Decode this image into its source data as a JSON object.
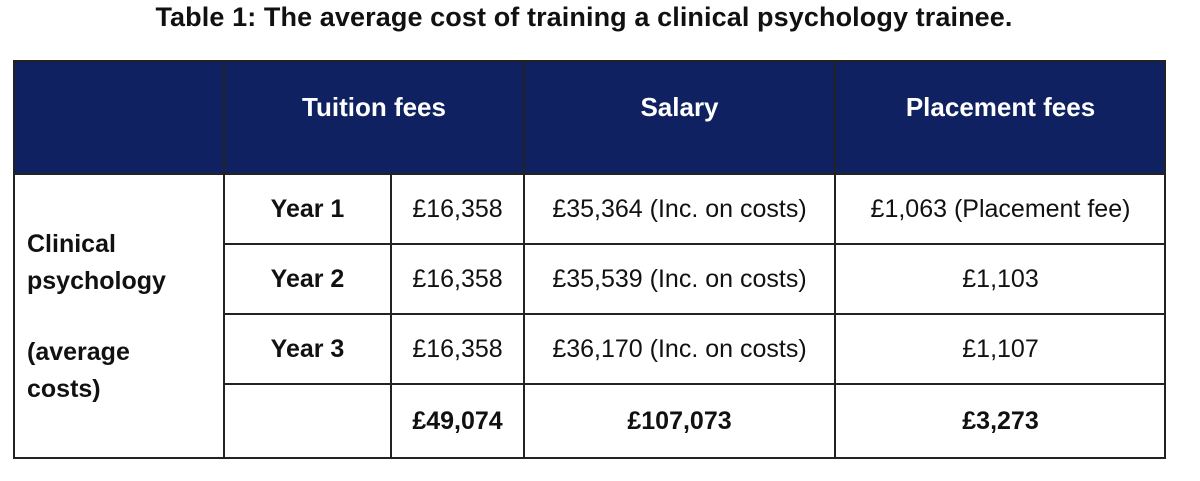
{
  "title": "Table 1: The average cost of training a clinical psychology trainee.",
  "header": {
    "tuition": "Tuition fees",
    "salary": "Salary",
    "placement": "Placement fees"
  },
  "row_label": {
    "line1": "Clinical",
    "line2": "psychology",
    "line3": "(average",
    "line4": "costs)"
  },
  "rows": [
    {
      "year": "Year 1",
      "tuition": "£16,358",
      "salary": "£35,364 (Inc. on costs)",
      "placement": "£1,063 (Placement fee)"
    },
    {
      "year": "Year 2",
      "tuition": "£16,358",
      "salary": "£35,539 (Inc. on costs)",
      "placement": "£1,103"
    },
    {
      "year": "Year 3",
      "tuition": "£16,358",
      "salary": "£36,170 (Inc. on costs)",
      "placement": "£1,107"
    }
  ],
  "totals": {
    "tuition": "£49,074",
    "salary": "£107,073",
    "placement": "£3,273"
  },
  "colors": {
    "header_bg": "#0f2160",
    "header_text": "#ffffff",
    "border": "#222222"
  }
}
